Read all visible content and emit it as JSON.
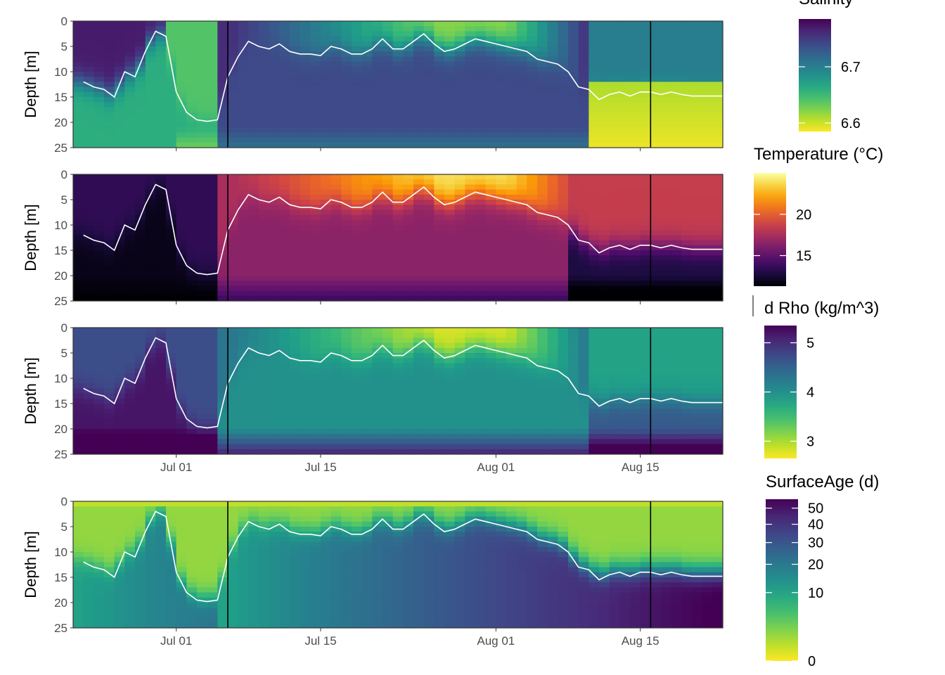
{
  "chart_data": [
    {
      "type": "heatmap",
      "variable": "Salinity",
      "legend_title": "Salinity",
      "legend_ticks": [
        {
          "value": 6.7,
          "label": "6.7"
        },
        {
          "value": 6.6,
          "label": "6.6"
        }
      ],
      "color_range": [
        6.585,
        6.785
      ],
      "palette": "viridis",
      "palette_reversed": true,
      "ylabel": "Depth [m]",
      "yticks": [
        0,
        5,
        10,
        15,
        20,
        25
      ],
      "ylim": [
        0,
        25
      ],
      "x_ticks_shown": false
    },
    {
      "type": "heatmap",
      "variable": "Temperature",
      "legend_title": "Temperature (°C)",
      "legend_ticks": [
        {
          "value": 20,
          "label": "20"
        },
        {
          "value": 15,
          "label": "15"
        }
      ],
      "color_range": [
        11.3,
        25
      ],
      "palette": "inferno",
      "palette_reversed": false,
      "ylabel": "Depth [m]",
      "yticks": [
        0,
        5,
        10,
        15,
        20,
        25
      ],
      "ylim": [
        0,
        25
      ],
      "x_ticks_shown": false
    },
    {
      "type": "heatmap",
      "variable": "d Rho",
      "legend_title": "d Rho (kg/m^3)",
      "legend_ticks": [
        {
          "value": 5,
          "label": "5"
        },
        {
          "value": 4,
          "label": "4"
        },
        {
          "value": 3,
          "label": "3"
        }
      ],
      "color_range": [
        2.65,
        5.35
      ],
      "palette": "viridis",
      "palette_reversed": true,
      "ylabel": "Depth [m]",
      "yticks": [
        0,
        5,
        10,
        15,
        20,
        25
      ],
      "ylim": [
        0,
        25
      ],
      "x_ticks_shown": true
    },
    {
      "type": "heatmap",
      "variable": "SurfaceAge",
      "legend_title": "SurfaceAge (d)",
      "legend_ticks": [
        {
          "value": 50,
          "label": "50"
        },
        {
          "value": 40,
          "label": "40"
        },
        {
          "value": 30,
          "label": "30"
        },
        {
          "value": 20,
          "label": "20"
        },
        {
          "value": 10,
          "label": "10"
        },
        {
          "value": 0,
          "label": "0"
        }
      ],
      "color_range": [
        0,
        56
      ],
      "color_scale": "sqrt",
      "palette": "viridis",
      "palette_reversed": true,
      "ylabel": "Depth [m]",
      "yticks": [
        0,
        5,
        10,
        15,
        20,
        25
      ],
      "ylim": [
        0,
        25
      ],
      "x_ticks_shown": true
    }
  ],
  "shared": {
    "x_range": [
      "2023-06-21",
      "2023-08-23"
    ],
    "x_ticks": [
      {
        "date": "2023-07-01",
        "label": "Jul 01"
      },
      {
        "date": "2023-07-15",
        "label": "Jul 15"
      },
      {
        "date": "2023-08-01",
        "label": "Aug 01"
      },
      {
        "date": "2023-08-15",
        "label": "Aug 15"
      }
    ],
    "vertical_lines": [
      "2023-07-06",
      "2023-08-16"
    ],
    "mixed_layer_depth": {
      "dates": [
        "2023-06-22",
        "2023-06-23",
        "2023-06-24",
        "2023-06-25",
        "2023-06-26",
        "2023-06-27",
        "2023-06-28",
        "2023-06-29",
        "2023-06-30",
        "2023-07-01",
        "2023-07-02",
        "2023-07-03",
        "2023-07-04",
        "2023-07-05",
        "2023-07-06",
        "2023-07-07",
        "2023-07-08",
        "2023-07-09",
        "2023-07-10",
        "2023-07-11",
        "2023-07-12",
        "2023-07-13",
        "2023-07-14",
        "2023-07-15",
        "2023-07-16",
        "2023-07-17",
        "2023-07-18",
        "2023-07-19",
        "2023-07-20",
        "2023-07-21",
        "2023-07-22",
        "2023-07-23",
        "2023-07-24",
        "2023-07-25",
        "2023-07-26",
        "2023-07-27",
        "2023-07-28",
        "2023-07-29",
        "2023-07-30",
        "2023-07-31",
        "2023-08-01",
        "2023-08-02",
        "2023-08-03",
        "2023-08-04",
        "2023-08-05",
        "2023-08-06",
        "2023-08-07",
        "2023-08-08",
        "2023-08-09",
        "2023-08-10",
        "2023-08-11",
        "2023-08-12",
        "2023-08-13",
        "2023-08-14",
        "2023-08-15",
        "2023-08-16",
        "2023-08-17",
        "2023-08-18",
        "2023-08-19",
        "2023-08-20",
        "2023-08-21",
        "2023-08-22",
        "2023-08-23"
      ],
      "depth_m": [
        12.0,
        13.0,
        13.5,
        15.0,
        10.0,
        11.0,
        6.0,
        2.0,
        3.0,
        14.0,
        18.0,
        19.5,
        19.8,
        19.5,
        11.0,
        7.0,
        4.0,
        5.0,
        5.5,
        4.5,
        6.0,
        6.5,
        6.5,
        6.8,
        5.0,
        5.5,
        6.5,
        6.5,
        5.5,
        3.5,
        5.5,
        5.5,
        4.0,
        2.5,
        4.5,
        6.0,
        5.5,
        4.5,
        3.5,
        4.0,
        4.5,
        5.0,
        5.5,
        6.0,
        7.5,
        8.0,
        8.5,
        10.0,
        13.0,
        13.5,
        15.5,
        14.5,
        14.0,
        14.8,
        14.0,
        14.0,
        14.5,
        14.0,
        14.5,
        14.8,
        14.8,
        14.8,
        14.8
      ]
    }
  }
}
